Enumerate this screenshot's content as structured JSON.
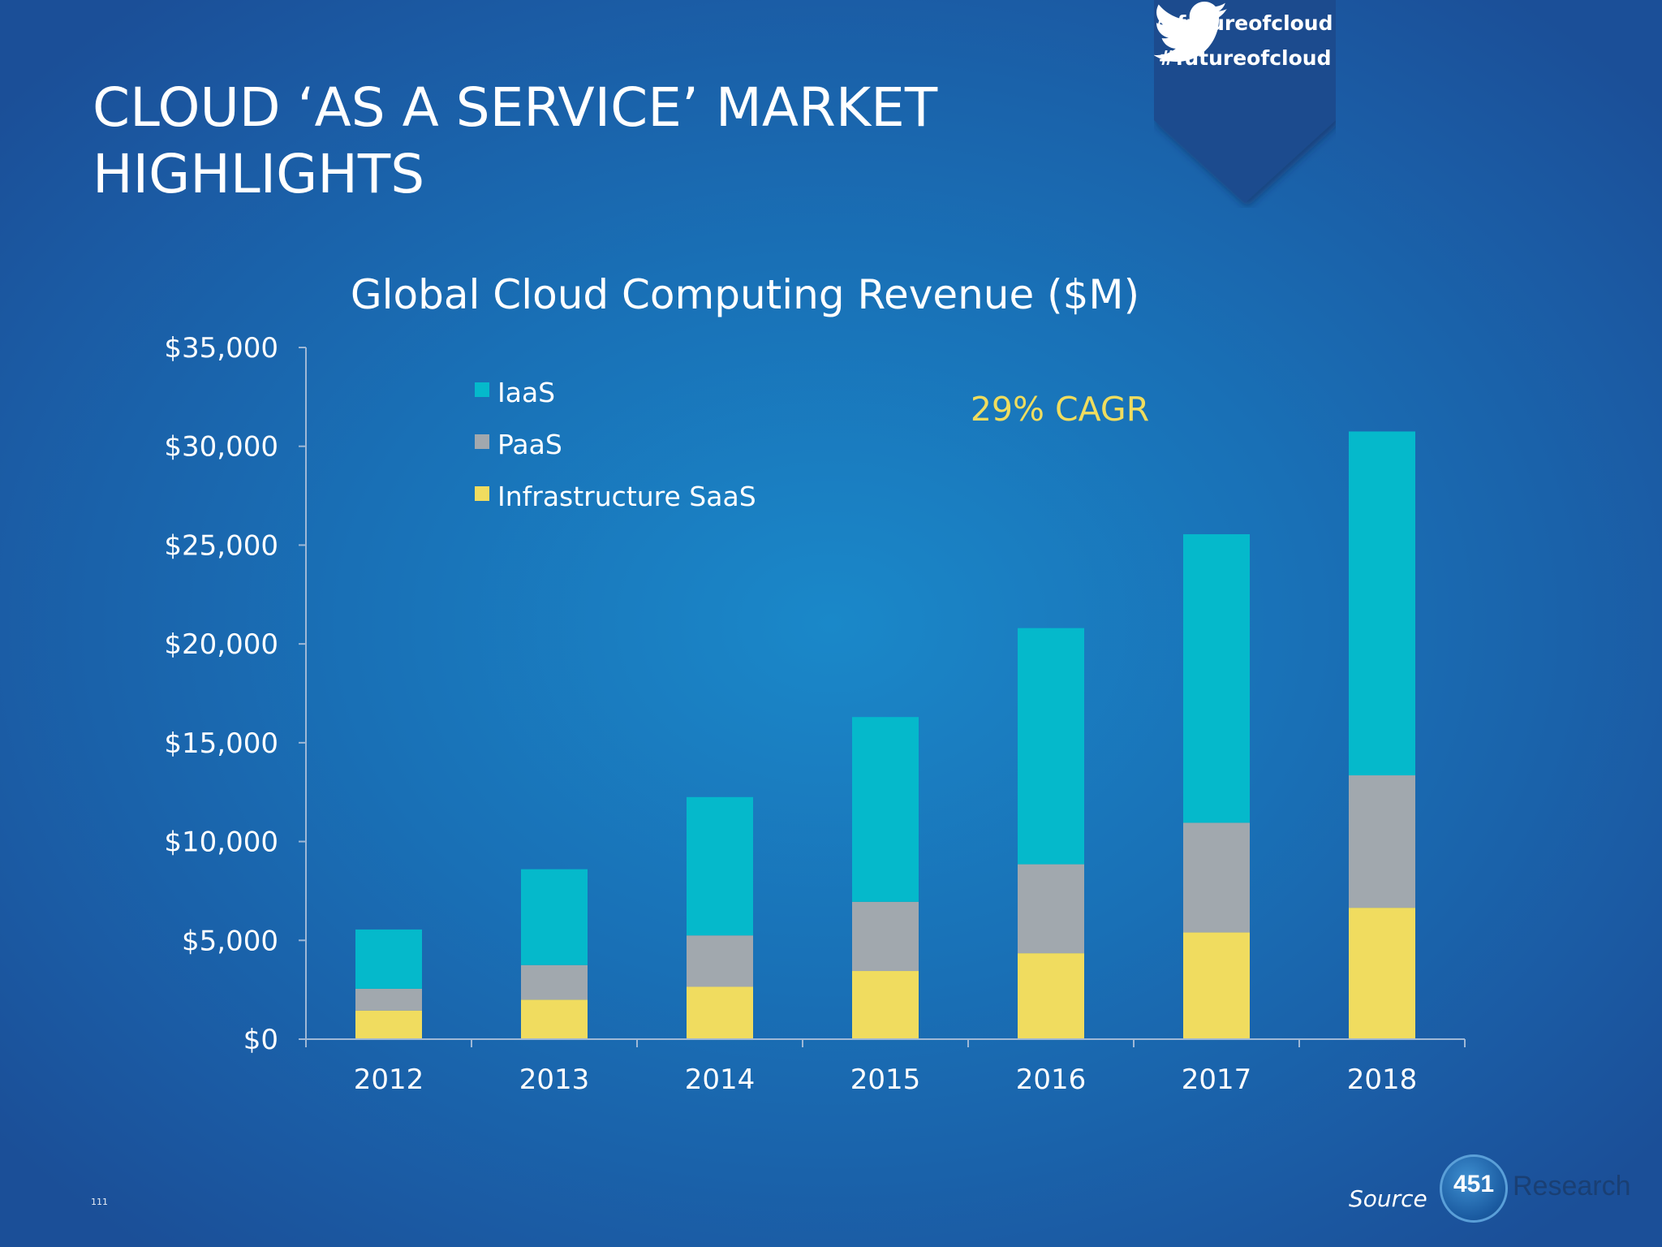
{
  "slide": {
    "title_line1": "CLOUD ‘AS A SERVICE’ MARKET",
    "title_line2": "HIGHLIGHTS",
    "twitter_handle": "@futureofcloud",
    "twitter_hashtag": "#futureofcloud",
    "twitter_icon": "twitter-bird-icon",
    "source_label": "Source",
    "logo_number": "451",
    "logo_word": "Research",
    "page_number": "111"
  },
  "chart_data": {
    "type": "bar",
    "stacked": true,
    "title": "Global Cloud Computing Revenue ($M)",
    "categories": [
      "2012",
      "2013",
      "2014",
      "2015",
      "2016",
      "2017",
      "2018"
    ],
    "series": [
      {
        "name": "Infrastructure SaaS",
        "color": "#f0dc5f",
        "values": [
          1450,
          2000,
          2650,
          3450,
          4350,
          5400,
          6650
        ]
      },
      {
        "name": "PaaS",
        "color": "#a1a8ae",
        "values": [
          1100,
          1750,
          2600,
          3500,
          4500,
          5550,
          6700
        ]
      },
      {
        "name": "IaaS",
        "color": "#05b9cb",
        "values": [
          3000,
          4850,
          7000,
          9350,
          11950,
          14600,
          17400
        ]
      }
    ],
    "legend_order": [
      "IaaS",
      "PaaS",
      "Infrastructure SaaS"
    ],
    "ylim": [
      0,
      35000
    ],
    "yticks": [
      0,
      5000,
      10000,
      15000,
      20000,
      25000,
      30000,
      35000
    ],
    "ytick_labels": [
      "$0",
      "$5,000",
      "$10,000",
      "$15,000",
      "$20,000",
      "$25,000",
      "$30,000",
      "$35,000"
    ],
    "annotation": "29% CAGR",
    "legend_position": "top-left",
    "grid": false,
    "xlabel": "",
    "ylabel": ""
  }
}
